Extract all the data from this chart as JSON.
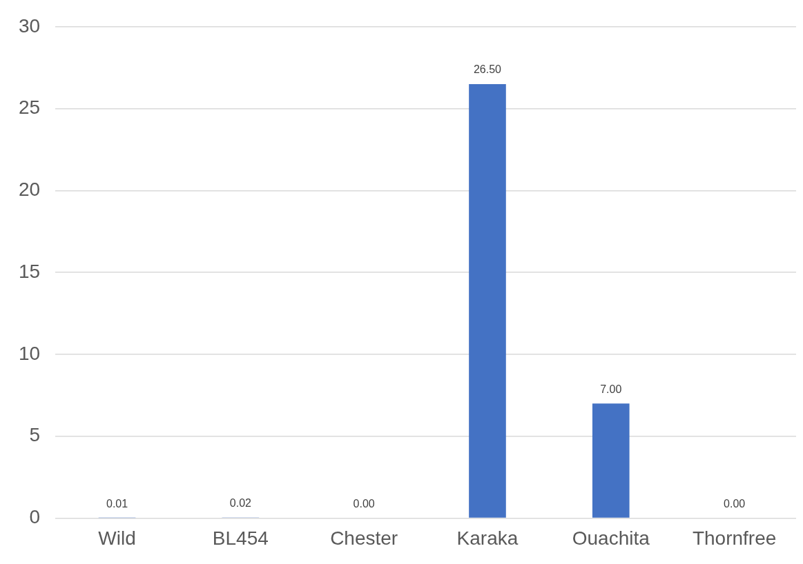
{
  "chart_data": {
    "type": "bar",
    "categories": [
      "Wild",
      "BL454",
      "Chester",
      "Karaka",
      "Ouachita",
      "Thornfree"
    ],
    "values": [
      0.01,
      0.02,
      0,
      26.5,
      7,
      0
    ],
    "value_labels": [
      "0.01",
      "0.02",
      "0.00",
      "26.50",
      "7.00",
      "0.00"
    ],
    "color": "#4472c4",
    "ylim": [
      0,
      30
    ],
    "yticks": [
      0,
      5,
      10,
      15,
      20,
      25,
      30
    ],
    "grid": "y",
    "legend": false
  }
}
